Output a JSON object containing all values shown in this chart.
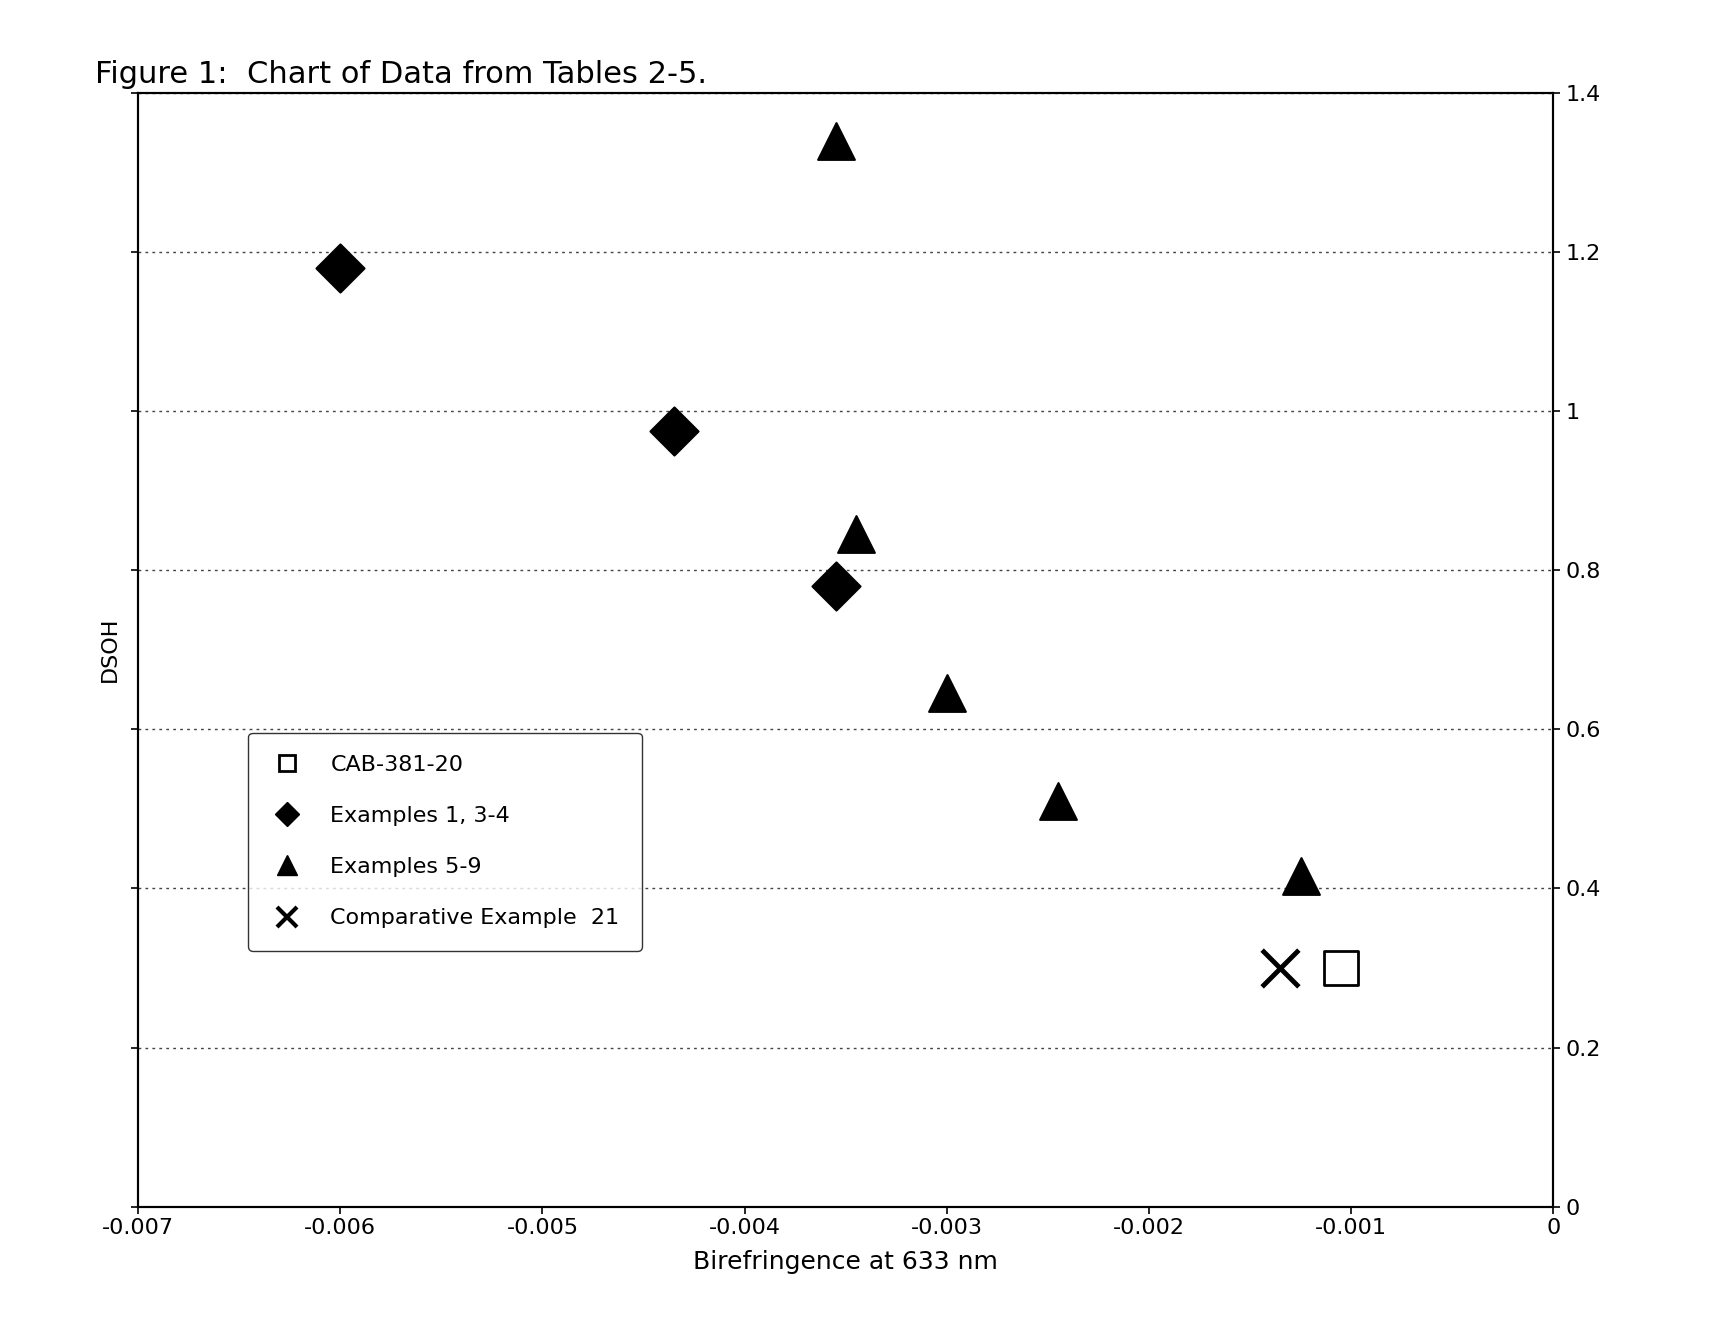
{
  "title": "Figure 1:  Chart of Data from Tables 2-5.",
  "xlabel": "Birefringence at 633 nm",
  "ylabel": "DSOH",
  "xlim": [
    -0.007,
    0.0
  ],
  "ylim": [
    0,
    1.4
  ],
  "xticks": [
    -0.007,
    -0.006,
    -0.005,
    -0.004,
    -0.003,
    -0.002,
    -0.001,
    0
  ],
  "yticks": [
    0,
    0.2,
    0.4,
    0.6,
    0.8,
    1.0,
    1.2,
    1.4
  ],
  "ytick_labels": [
    "0",
    "0.2",
    "0.4",
    "0.6",
    "0.8",
    "1",
    "1.2",
    "1.4"
  ],
  "background_color": "#ffffff",
  "grid_color": "#444444",
  "series": {
    "square": {
      "label": "CAB-381-20",
      "marker": "s",
      "facecolor": "white",
      "edgecolor": "black",
      "size": 600,
      "linewidths": 2.0,
      "points": [
        [
          -0.00105,
          0.3
        ]
      ]
    },
    "diamond": {
      "label": "Examples 1, 3-4",
      "marker": "D",
      "facecolor": "black",
      "edgecolor": "black",
      "size": 600,
      "linewidths": 1.5,
      "points": [
        [
          -0.006,
          1.18
        ],
        [
          -0.00435,
          0.975
        ],
        [
          -0.00355,
          0.78
        ]
      ]
    },
    "triangle": {
      "label": "Examples 5-9",
      "marker": "^",
      "facecolor": "black",
      "edgecolor": "black",
      "size": 700,
      "linewidths": 1.5,
      "points": [
        [
          -0.00355,
          1.34
        ],
        [
          -0.00345,
          0.845
        ],
        [
          -0.003,
          0.645
        ],
        [
          -0.00245,
          0.51
        ],
        [
          -0.00125,
          0.415
        ]
      ]
    },
    "cross": {
      "label": "Comparative Example  21",
      "marker": "x",
      "facecolor": "black",
      "edgecolor": "black",
      "size": 700,
      "linewidths": 3.5,
      "points": [
        [
          -0.00135,
          0.3
        ]
      ]
    }
  }
}
